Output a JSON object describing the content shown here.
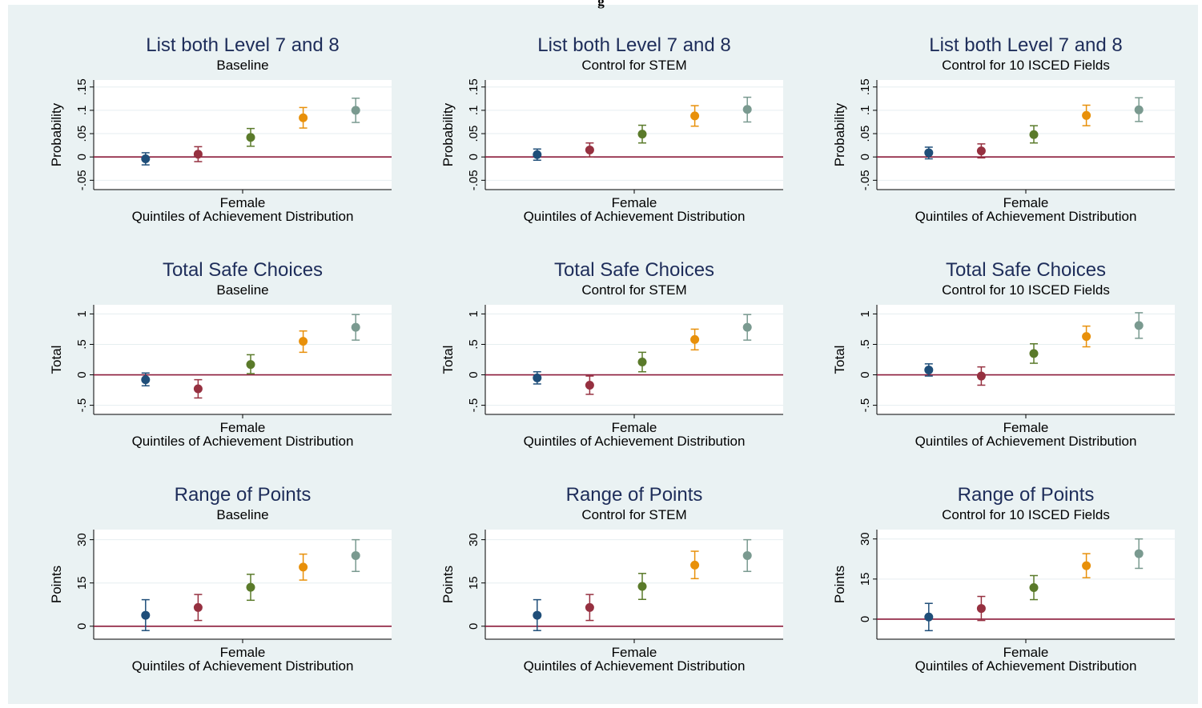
{
  "page": {
    "title_fragment": "g"
  },
  "colors": {
    "background": "#eaf2f3",
    "plot_background": "#ffffff",
    "title": "#1e2d5a",
    "reference_line": "#8b1a3a",
    "gridline": "#e6eef0",
    "quintiles": [
      "#1f4e79",
      "#963040",
      "#5a7a2a",
      "#e8900a",
      "#7a9a90"
    ]
  },
  "chart_data": [
    {
      "type": "scatter",
      "title": "List both Level 7 and 8",
      "subtitle": "Baseline",
      "ylabel": "Probability",
      "xlabel": "Quintiles of Achievement Distribution",
      "xtick": "Female",
      "ylim": [
        -0.07,
        0.165
      ],
      "yticks": [
        "-.05",
        "0",
        ".05",
        ".1",
        ".15"
      ],
      "ytick_values": [
        -0.05,
        0,
        0.05,
        0.1,
        0.15
      ],
      "reference_line": 0,
      "grid": true,
      "points": [
        {
          "quintile": 1,
          "value": -0.004,
          "ci": [
            -0.017,
            0.009
          ]
        },
        {
          "quintile": 2,
          "value": 0.006,
          "ci": [
            -0.01,
            0.022
          ]
        },
        {
          "quintile": 3,
          "value": 0.042,
          "ci": [
            0.023,
            0.061
          ]
        },
        {
          "quintile": 4,
          "value": 0.084,
          "ci": [
            0.062,
            0.106
          ]
        },
        {
          "quintile": 5,
          "value": 0.1,
          "ci": [
            0.074,
            0.126
          ]
        }
      ]
    },
    {
      "type": "scatter",
      "title": "List both Level 7 and 8",
      "subtitle": "Control for STEM",
      "ylabel": "Probability",
      "xlabel": "Quintiles of Achievement Distribution",
      "xtick": "Female",
      "ylim": [
        -0.07,
        0.165
      ],
      "yticks": [
        "-.05",
        "0",
        ".05",
        ".1",
        ".15"
      ],
      "ytick_values": [
        -0.05,
        0,
        0.05,
        0.1,
        0.15
      ],
      "reference_line": 0,
      "grid": true,
      "points": [
        {
          "quintile": 1,
          "value": 0.005,
          "ci": [
            -0.007,
            0.017
          ]
        },
        {
          "quintile": 2,
          "value": 0.015,
          "ci": [
            0.0,
            0.03
          ]
        },
        {
          "quintile": 3,
          "value": 0.049,
          "ci": [
            0.03,
            0.068
          ]
        },
        {
          "quintile": 4,
          "value": 0.088,
          "ci": [
            0.066,
            0.11
          ]
        },
        {
          "quintile": 5,
          "value": 0.102,
          "ci": [
            0.075,
            0.128
          ]
        }
      ]
    },
    {
      "type": "scatter",
      "title": "List both Level 7 and 8",
      "subtitle": "Control for 10 ISCED Fields",
      "ylabel": "Probability",
      "xlabel": "Quintiles of Achievement Distribution",
      "xtick": "Female",
      "ylim": [
        -0.07,
        0.165
      ],
      "yticks": [
        "-.05",
        "0",
        ".05",
        ".1",
        ".15"
      ],
      "ytick_values": [
        -0.05,
        0,
        0.05,
        0.1,
        0.15
      ],
      "reference_line": 0,
      "grid": true,
      "points": [
        {
          "quintile": 1,
          "value": 0.009,
          "ci": [
            -0.004,
            0.021
          ]
        },
        {
          "quintile": 2,
          "value": 0.013,
          "ci": [
            -0.002,
            0.028
          ]
        },
        {
          "quintile": 3,
          "value": 0.048,
          "ci": [
            0.03,
            0.067
          ]
        },
        {
          "quintile": 4,
          "value": 0.089,
          "ci": [
            0.067,
            0.111
          ]
        },
        {
          "quintile": 5,
          "value": 0.101,
          "ci": [
            0.076,
            0.127
          ]
        }
      ]
    },
    {
      "type": "scatter",
      "title": "Total Safe Choices",
      "subtitle": "Baseline",
      "ylabel": "Total",
      "xlabel": "Quintiles of Achievement Distribution",
      "xtick": "Female",
      "ylim": [
        -0.65,
        1.15
      ],
      "yticks": [
        "-.5",
        "0",
        ".5",
        "1"
      ],
      "ytick_values": [
        -0.5,
        0,
        0.5,
        1
      ],
      "reference_line": 0,
      "grid": true,
      "points": [
        {
          "quintile": 1,
          "value": -0.08,
          "ci": [
            -0.18,
            0.03
          ]
        },
        {
          "quintile": 2,
          "value": -0.23,
          "ci": [
            -0.38,
            -0.08
          ]
        },
        {
          "quintile": 3,
          "value": 0.17,
          "ci": [
            0.02,
            0.33
          ]
        },
        {
          "quintile": 4,
          "value": 0.55,
          "ci": [
            0.37,
            0.72
          ]
        },
        {
          "quintile": 5,
          "value": 0.78,
          "ci": [
            0.57,
            0.99
          ]
        }
      ]
    },
    {
      "type": "scatter",
      "title": "Total Safe Choices",
      "subtitle": "Control for STEM",
      "ylabel": "Total",
      "xlabel": "Quintiles of Achievement Distribution",
      "xtick": "Female",
      "ylim": [
        -0.65,
        1.15
      ],
      "yticks": [
        "-.5",
        "0",
        ".5",
        "1"
      ],
      "ytick_values": [
        -0.5,
        0,
        0.5,
        1
      ],
      "reference_line": 0,
      "grid": true,
      "points": [
        {
          "quintile": 1,
          "value": -0.05,
          "ci": [
            -0.15,
            0.05
          ]
        },
        {
          "quintile": 2,
          "value": -0.17,
          "ci": [
            -0.32,
            -0.02
          ]
        },
        {
          "quintile": 3,
          "value": 0.21,
          "ci": [
            0.05,
            0.37
          ]
        },
        {
          "quintile": 4,
          "value": 0.58,
          "ci": [
            0.41,
            0.75
          ]
        },
        {
          "quintile": 5,
          "value": 0.78,
          "ci": [
            0.57,
            0.99
          ]
        }
      ]
    },
    {
      "type": "scatter",
      "title": "Total Safe Choices",
      "subtitle": "Control for 10 ISCED Fields",
      "ylabel": "Total",
      "xlabel": "Quintiles of Achievement Distribution",
      "xtick": "Female",
      "ylim": [
        -0.65,
        1.15
      ],
      "yticks": [
        "-.5",
        "0",
        ".5",
        "1"
      ],
      "ytick_values": [
        -0.5,
        0,
        0.5,
        1
      ],
      "reference_line": 0,
      "grid": true,
      "points": [
        {
          "quintile": 1,
          "value": 0.08,
          "ci": [
            -0.02,
            0.18
          ]
        },
        {
          "quintile": 2,
          "value": -0.02,
          "ci": [
            -0.17,
            0.13
          ]
        },
        {
          "quintile": 3,
          "value": 0.35,
          "ci": [
            0.19,
            0.51
          ]
        },
        {
          "quintile": 4,
          "value": 0.63,
          "ci": [
            0.46,
            0.8
          ]
        },
        {
          "quintile": 5,
          "value": 0.81,
          "ci": [
            0.6,
            1.02
          ]
        }
      ]
    },
    {
      "type": "scatter",
      "title": "Range of Points",
      "subtitle": "Baseline",
      "ylabel": "Points",
      "xlabel": "Quintiles of Achievement Distribution",
      "xtick": "Female",
      "ylim": [
        -4.5,
        33.5
      ],
      "yticks": [
        "0",
        "15",
        "30"
      ],
      "ytick_values": [
        0,
        15,
        30
      ],
      "reference_line": 0,
      "grid": true,
      "points": [
        {
          "quintile": 1,
          "value": 3.8,
          "ci": [
            -1.5,
            9.2
          ]
        },
        {
          "quintile": 2,
          "value": 6.5,
          "ci": [
            2.0,
            11.0
          ]
        },
        {
          "quintile": 3,
          "value": 13.5,
          "ci": [
            9.0,
            18.0
          ]
        },
        {
          "quintile": 4,
          "value": 20.5,
          "ci": [
            16.0,
            25.0
          ]
        },
        {
          "quintile": 5,
          "value": 24.5,
          "ci": [
            19.0,
            30.0
          ]
        }
      ]
    },
    {
      "type": "scatter",
      "title": "Range of Points",
      "subtitle": "Control for STEM",
      "ylabel": "Points",
      "xlabel": "Quintiles of Achievement Distribution",
      "xtick": "Female",
      "ylim": [
        -4.5,
        33.5
      ],
      "yticks": [
        "0",
        "15",
        "30"
      ],
      "ytick_values": [
        0,
        15,
        30
      ],
      "reference_line": 0,
      "grid": true,
      "points": [
        {
          "quintile": 1,
          "value": 3.8,
          "ci": [
            -1.5,
            9.2
          ]
        },
        {
          "quintile": 2,
          "value": 6.5,
          "ci": [
            2.0,
            11.0
          ]
        },
        {
          "quintile": 3,
          "value": 13.8,
          "ci": [
            9.3,
            18.3
          ]
        },
        {
          "quintile": 4,
          "value": 21.2,
          "ci": [
            16.5,
            26.0
          ]
        },
        {
          "quintile": 5,
          "value": 24.5,
          "ci": [
            19.0,
            30.0
          ]
        }
      ]
    },
    {
      "type": "scatter",
      "title": "Range of Points",
      "subtitle": "Control for 10 ISCED Fields",
      "ylabel": "Points",
      "xlabel": "Quintiles of Achievement Distribution",
      "xtick": "Female",
      "ylim": [
        -7.5,
        33.5
      ],
      "yticks": [
        "0",
        "15",
        "30"
      ],
      "ytick_values": [
        0,
        15,
        30
      ],
      "reference_line": 0,
      "grid": true,
      "points": [
        {
          "quintile": 1,
          "value": 0.8,
          "ci": [
            -4.3,
            5.9
          ]
        },
        {
          "quintile": 2,
          "value": 4.0,
          "ci": [
            -0.5,
            8.5
          ]
        },
        {
          "quintile": 3,
          "value": 11.8,
          "ci": [
            7.3,
            16.3
          ]
        },
        {
          "quintile": 4,
          "value": 20.0,
          "ci": [
            15.5,
            24.5
          ]
        },
        {
          "quintile": 5,
          "value": 24.5,
          "ci": [
            19.0,
            30.0
          ]
        }
      ]
    }
  ]
}
